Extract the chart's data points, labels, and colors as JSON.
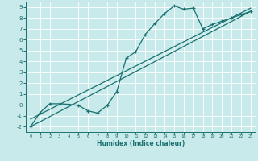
{
  "xlabel": "Humidex (Indice chaleur)",
  "bg_color": "#c8eaea",
  "grid_color": "#ffffff",
  "line_color": "#1a7070",
  "xlim": [
    -0.5,
    23.5
  ],
  "ylim": [
    -2.5,
    9.5
  ],
  "xticks": [
    0,
    1,
    2,
    3,
    4,
    5,
    6,
    7,
    8,
    9,
    10,
    11,
    12,
    13,
    14,
    15,
    16,
    17,
    18,
    19,
    20,
    21,
    22,
    23
  ],
  "yticks": [
    -2,
    -1,
    0,
    1,
    2,
    3,
    4,
    5,
    6,
    7,
    8,
    9
  ],
  "curve_x": [
    0,
    1,
    2,
    3,
    4,
    5,
    6,
    7,
    8,
    9,
    10,
    11,
    12,
    13,
    14,
    15,
    16,
    17,
    18,
    19,
    20,
    21,
    22,
    23
  ],
  "curve_y": [
    -2.0,
    -0.7,
    0.1,
    0.1,
    0.05,
    -0.05,
    -0.55,
    -0.75,
    -0.05,
    1.2,
    4.3,
    4.9,
    6.5,
    7.5,
    8.4,
    9.1,
    8.8,
    8.9,
    7.0,
    7.4,
    7.7,
    8.0,
    8.3,
    8.6
  ],
  "line1_x": [
    0,
    23
  ],
  "line1_y": [
    -2.0,
    8.6
  ],
  "line2_x": [
    0,
    23
  ],
  "line2_y": [
    -1.3,
    8.9
  ]
}
